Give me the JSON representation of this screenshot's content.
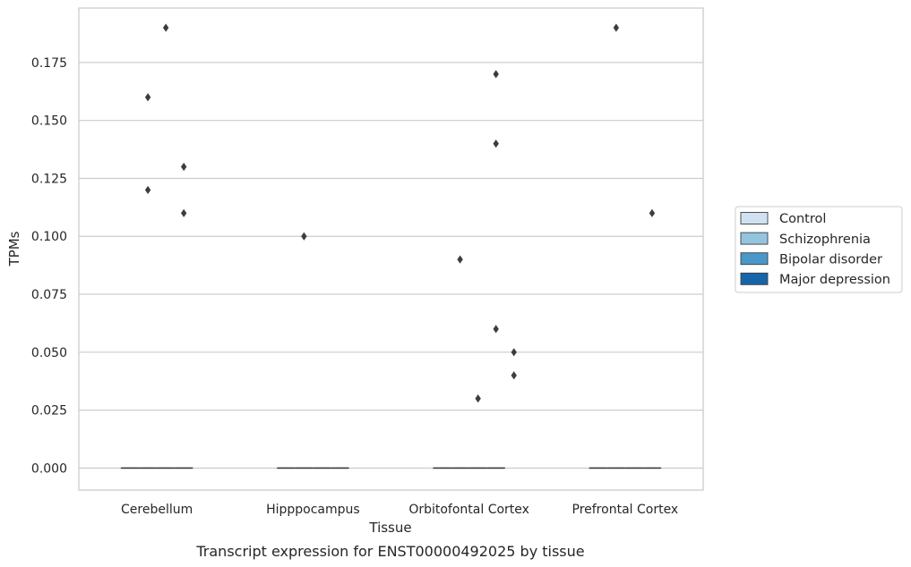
{
  "chart_data": {
    "type": "box",
    "xlabel": "Tissue",
    "ylabel": "TPMs",
    "caption": "Transcript expression for ENST00000492025 by tissue",
    "categories": [
      "Cerebellum",
      "Hipppocampus",
      "Orbitofontal Cortex",
      "Prefrontal Cortex"
    ],
    "ylim": [
      -0.0095,
      0.1985
    ],
    "yticks": [
      0.0,
      0.025,
      0.05,
      0.075,
      0.1,
      0.125,
      0.15,
      0.175
    ],
    "ytick_labels": [
      "0.000",
      "0.025",
      "0.050",
      "0.075",
      "0.100",
      "0.125",
      "0.150",
      "0.175"
    ],
    "grid": "horizontal",
    "legend_position": "right",
    "series": [
      {
        "name": "Control",
        "color": "#d0e1f2",
        "boxes": [
          {
            "median": 0,
            "q1": 0,
            "q3": 0
          },
          {
            "median": 0,
            "q1": 0,
            "q3": 0
          },
          {
            "median": 0,
            "q1": 0,
            "q3": 0
          },
          {
            "median": 0,
            "q1": 0,
            "q3": 0
          }
        ],
        "outliers": [
          [],
          [],
          [],
          []
        ]
      },
      {
        "name": "Schizophrenia",
        "color": "#94c4df",
        "boxes": [
          {
            "median": 0,
            "q1": 0,
            "q3": 0
          },
          {
            "median": 0,
            "q1": 0,
            "q3": 0
          },
          {
            "median": 0,
            "q1": 0,
            "q3": 0
          },
          {
            "median": 0,
            "q1": 0,
            "q3": 0
          }
        ],
        "outliers": [
          [
            0.16,
            0.12
          ],
          [
            0.1
          ],
          [
            0.09
          ],
          [
            0.19
          ]
        ]
      },
      {
        "name": "Bipolar disorder",
        "color": "#4a98c9",
        "boxes": [
          {
            "median": 0,
            "q1": 0,
            "q3": 0
          },
          {
            "median": 0,
            "q1": 0,
            "q3": 0
          },
          {
            "median": 0,
            "q1": 0,
            "q3": 0
          },
          {
            "median": 0,
            "q1": 0,
            "q3": 0
          }
        ],
        "outliers": [
          [
            0.19
          ],
          [],
          [
            0.03
          ],
          []
        ]
      },
      {
        "name": "Major depression",
        "color": "#1764ab",
        "boxes": [
          {
            "median": 0,
            "q1": 0,
            "q3": 0
          },
          {
            "median": 0,
            "q1": 0,
            "q3": 0
          },
          {
            "median": 0,
            "q1": 0,
            "q3": 0
          },
          {
            "median": 0,
            "q1": 0,
            "q3": 0
          }
        ],
        "outliers": [
          [
            0.13,
            0.11
          ],
          [],
          [
            0.17,
            0.14,
            0.06
          ],
          [
            0.11
          ]
        ]
      }
    ],
    "extra_outliers": [
      {
        "category": "Orbitofontal Cortex",
        "series": "Major depression",
        "values": [
          0.05,
          0.04
        ],
        "offset": "right"
      }
    ]
  }
}
